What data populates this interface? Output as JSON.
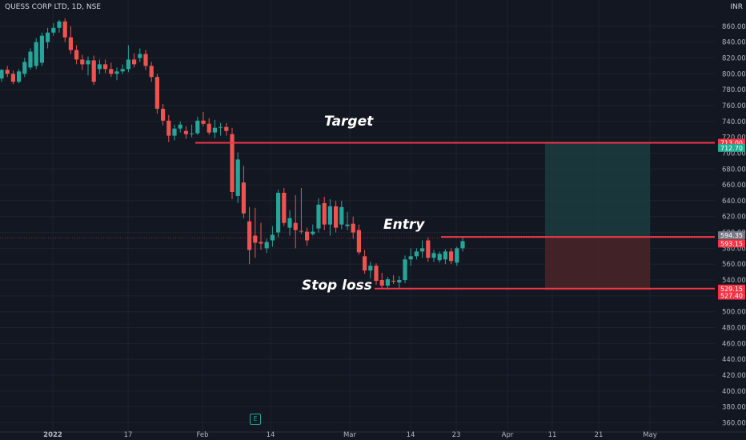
{
  "header": {
    "symbol": "QUESS CORP LTD, 1D, NSE",
    "currency": "INR"
  },
  "annotations": {
    "target": "Target",
    "entry": "Entry",
    "stop_loss": "Stop loss"
  },
  "events": {
    "earnings_badge": "E"
  },
  "colors": {
    "background": "#131722",
    "up": "#26a69a",
    "down": "#ef5350",
    "line": "#f23645",
    "target_zone": "#1b3d3f",
    "stop_zone": "#4a2428",
    "grid": "#1e222d"
  },
  "chart_data": {
    "type": "candlestick",
    "title": "QUESS CORP LTD, 1D, NSE",
    "ylim": [
      355,
      870
    ],
    "y_ticks": [
      360,
      380,
      400,
      420,
      440,
      460,
      480,
      500,
      520,
      540,
      560,
      580,
      600,
      620,
      640,
      660,
      680,
      700,
      720,
      740,
      760,
      780,
      800,
      820,
      840,
      860
    ],
    "x_tick_labels": [
      "2022",
      "17",
      "Feb",
      "14",
      "Mar",
      "14",
      "23",
      "Apr",
      "11",
      "21",
      "May"
    ],
    "candles": [
      {
        "o": 794,
        "h": 806,
        "l": 790,
        "c": 805
      },
      {
        "o": 805,
        "h": 810,
        "l": 796,
        "c": 800
      },
      {
        "o": 800,
        "h": 804,
        "l": 787,
        "c": 790
      },
      {
        "o": 790,
        "h": 806,
        "l": 788,
        "c": 803
      },
      {
        "o": 800,
        "h": 820,
        "l": 796,
        "c": 815
      },
      {
        "o": 808,
        "h": 832,
        "l": 805,
        "c": 828
      },
      {
        "o": 810,
        "h": 845,
        "l": 806,
        "c": 840
      },
      {
        "o": 814,
        "h": 852,
        "l": 810,
        "c": 848
      },
      {
        "o": 840,
        "h": 858,
        "l": 832,
        "c": 852
      },
      {
        "o": 852,
        "h": 864,
        "l": 848,
        "c": 858
      },
      {
        "o": 858,
        "h": 868,
        "l": 852,
        "c": 866
      },
      {
        "o": 866,
        "h": 870,
        "l": 840,
        "c": 846
      },
      {
        "o": 846,
        "h": 860,
        "l": 825,
        "c": 830
      },
      {
        "o": 830,
        "h": 836,
        "l": 812,
        "c": 818
      },
      {
        "o": 818,
        "h": 824,
        "l": 805,
        "c": 812
      },
      {
        "o": 812,
        "h": 822,
        "l": 798,
        "c": 817
      },
      {
        "o": 817,
        "h": 823,
        "l": 786,
        "c": 790
      },
      {
        "o": 806,
        "h": 818,
        "l": 800,
        "c": 812
      },
      {
        "o": 812,
        "h": 818,
        "l": 801,
        "c": 806
      },
      {
        "o": 806,
        "h": 814,
        "l": 796,
        "c": 800
      },
      {
        "o": 800,
        "h": 808,
        "l": 792,
        "c": 803
      },
      {
        "o": 803,
        "h": 812,
        "l": 800,
        "c": 806
      },
      {
        "o": 806,
        "h": 836,
        "l": 802,
        "c": 818
      },
      {
        "o": 818,
        "h": 826,
        "l": 808,
        "c": 812
      },
      {
        "o": 820,
        "h": 832,
        "l": 815,
        "c": 825
      },
      {
        "o": 825,
        "h": 830,
        "l": 805,
        "c": 810
      },
      {
        "o": 810,
        "h": 815,
        "l": 790,
        "c": 796
      },
      {
        "o": 796,
        "h": 800,
        "l": 750,
        "c": 756
      },
      {
        "o": 756,
        "h": 762,
        "l": 735,
        "c": 741
      },
      {
        "o": 741,
        "h": 748,
        "l": 714,
        "c": 722
      },
      {
        "o": 722,
        "h": 736,
        "l": 716,
        "c": 731
      },
      {
        "o": 731,
        "h": 740,
        "l": 726,
        "c": 736
      },
      {
        "o": 728,
        "h": 734,
        "l": 718,
        "c": 724
      },
      {
        "o": 724,
        "h": 736,
        "l": 720,
        "c": 725
      },
      {
        "o": 725,
        "h": 746,
        "l": 723,
        "c": 741
      },
      {
        "o": 741,
        "h": 752,
        "l": 734,
        "c": 737
      },
      {
        "o": 737,
        "h": 744,
        "l": 723,
        "c": 726
      },
      {
        "o": 726,
        "h": 742,
        "l": 719,
        "c": 732
      },
      {
        "o": 732,
        "h": 738,
        "l": 722,
        "c": 733
      },
      {
        "o": 733,
        "h": 738,
        "l": 722,
        "c": 728
      },
      {
        "o": 724,
        "h": 732,
        "l": 642,
        "c": 651
      },
      {
        "o": 646,
        "h": 701,
        "l": 637,
        "c": 692
      },
      {
        "o": 663,
        "h": 684,
        "l": 618,
        "c": 624
      },
      {
        "o": 614,
        "h": 632,
        "l": 560,
        "c": 578
      },
      {
        "o": 596,
        "h": 631,
        "l": 568,
        "c": 587
      },
      {
        "o": 588,
        "h": 612,
        "l": 578,
        "c": 586
      },
      {
        "o": 580,
        "h": 592,
        "l": 574,
        "c": 588
      },
      {
        "o": 590,
        "h": 608,
        "l": 582,
        "c": 597
      },
      {
        "o": 600,
        "h": 654,
        "l": 594,
        "c": 650
      },
      {
        "o": 650,
        "h": 656,
        "l": 608,
        "c": 612
      },
      {
        "o": 606,
        "h": 628,
        "l": 596,
        "c": 618
      },
      {
        "o": 612,
        "h": 647,
        "l": 580,
        "c": 603
      },
      {
        "o": 602,
        "h": 656,
        "l": 598,
        "c": 601
      },
      {
        "o": 601,
        "h": 606,
        "l": 583,
        "c": 590
      },
      {
        "o": 598,
        "h": 610,
        "l": 596,
        "c": 601
      },
      {
        "o": 605,
        "h": 643,
        "l": 600,
        "c": 635
      },
      {
        "o": 637,
        "h": 645,
        "l": 603,
        "c": 610
      },
      {
        "o": 610,
        "h": 642,
        "l": 596,
        "c": 633
      },
      {
        "o": 633,
        "h": 640,
        "l": 600,
        "c": 606
      },
      {
        "o": 610,
        "h": 640,
        "l": 604,
        "c": 632
      },
      {
        "o": 608,
        "h": 626,
        "l": 603,
        "c": 610
      },
      {
        "o": 611,
        "h": 620,
        "l": 592,
        "c": 600
      },
      {
        "o": 603,
        "h": 610,
        "l": 572,
        "c": 575
      },
      {
        "o": 570,
        "h": 578,
        "l": 548,
        "c": 552
      },
      {
        "o": 552,
        "h": 563,
        "l": 542,
        "c": 558
      },
      {
        "o": 558,
        "h": 561,
        "l": 534,
        "c": 539
      },
      {
        "o": 540,
        "h": 549,
        "l": 530,
        "c": 533
      },
      {
        "o": 533,
        "h": 544,
        "l": 528,
        "c": 541
      },
      {
        "o": 539,
        "h": 546,
        "l": 535,
        "c": 538
      },
      {
        "o": 537,
        "h": 545,
        "l": 530,
        "c": 540
      },
      {
        "o": 540,
        "h": 571,
        "l": 536,
        "c": 566
      },
      {
        "o": 566,
        "h": 580,
        "l": 558,
        "c": 570
      },
      {
        "o": 570,
        "h": 580,
        "l": 566,
        "c": 576
      },
      {
        "o": 576,
        "h": 590,
        "l": 568,
        "c": 580
      },
      {
        "o": 590,
        "h": 594,
        "l": 563,
        "c": 568
      },
      {
        "o": 568,
        "h": 578,
        "l": 563,
        "c": 574
      },
      {
        "o": 565,
        "h": 576,
        "l": 562,
        "c": 573
      },
      {
        "o": 566,
        "h": 579,
        "l": 560,
        "c": 576
      },
      {
        "o": 576,
        "h": 580,
        "l": 560,
        "c": 564
      },
      {
        "o": 562,
        "h": 582,
        "l": 558,
        "c": 580
      },
      {
        "o": 580,
        "h": 594,
        "l": 576,
        "c": 589
      }
    ],
    "levels": [
      {
        "name": "Target",
        "value": 713.0,
        "label": "713.00"
      },
      {
        "name": "Entry",
        "value": 594.35,
        "label": "594.35"
      },
      {
        "name": "Stop loss",
        "value": 529.15,
        "label": "529.15"
      }
    ],
    "position": {
      "entry": 594.35,
      "target": 712.7,
      "stop": 527.4
    },
    "price_labels": [
      {
        "value": 713.0,
        "label": "713.00",
        "color": "#f23645"
      },
      {
        "value": 712.7,
        "label": "712.70",
        "color": "#22ab94"
      },
      {
        "value": 594.35,
        "label": "594.35",
        "color": "#787b86"
      },
      {
        "value": 593.15,
        "label": "593.15",
        "color": "#f23645"
      },
      {
        "value": 529.15,
        "label": "529.15",
        "color": "#f23645"
      },
      {
        "value": 527.4,
        "label": "527.40",
        "color": "#f23645"
      }
    ],
    "last_price": 593.15,
    "grid": true
  }
}
